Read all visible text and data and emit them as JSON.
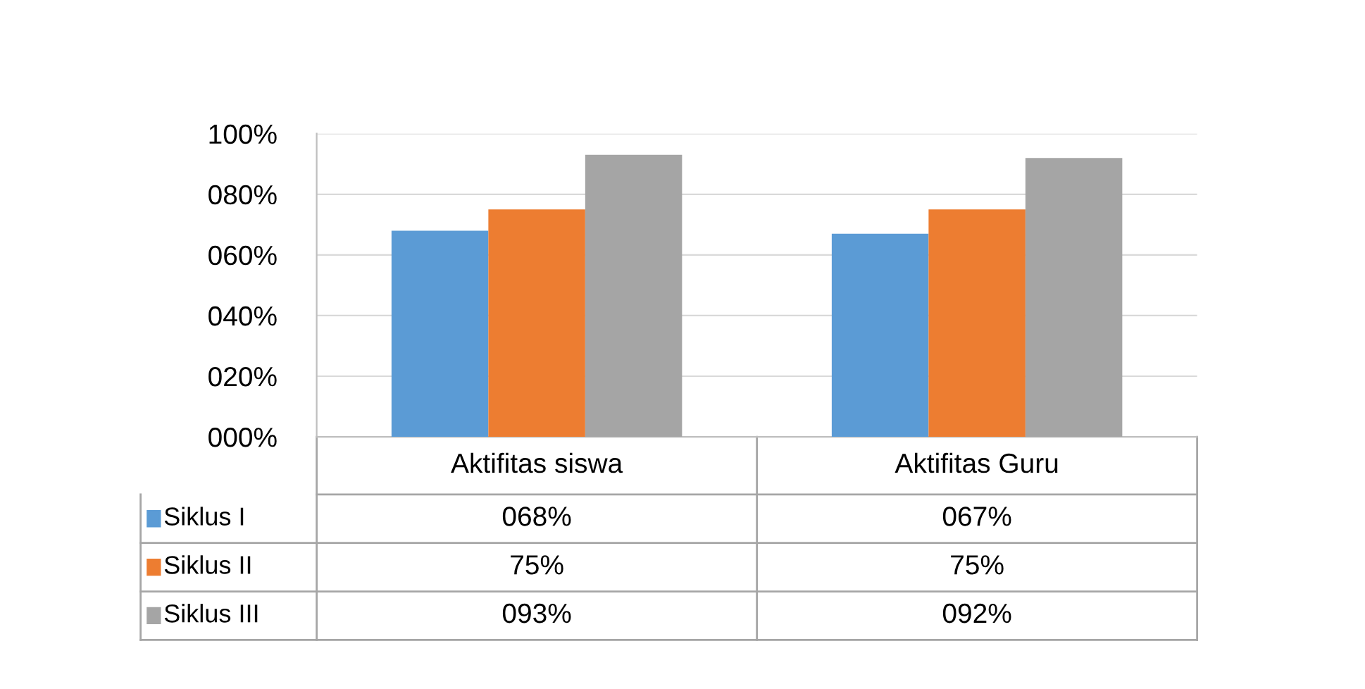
{
  "chart_data": {
    "type": "bar",
    "categories": [
      "Aktifitas siswa",
      "Aktifitas Guru"
    ],
    "series": [
      {
        "name": "Siklus I",
        "color": "#5b9bd5",
        "values": [
          68,
          67
        ],
        "value_labels": [
          "068%",
          "067%"
        ]
      },
      {
        "name": "Siklus II",
        "color": "#ed7d31",
        "values": [
          75,
          75
        ],
        "value_labels": [
          "75%",
          "75%"
        ]
      },
      {
        "name": "Siklus III",
        "color": "#a5a5a5",
        "values": [
          93,
          92
        ],
        "value_labels": [
          "093%",
          "092%"
        ]
      }
    ],
    "ylim": [
      0,
      100
    ],
    "yticks": [
      {
        "value": 0,
        "label": "000%"
      },
      {
        "value": 20,
        "label": "020%"
      },
      {
        "value": 40,
        "label": "040%"
      },
      {
        "value": 60,
        "label": "060%"
      },
      {
        "value": 80,
        "label": "080%"
      },
      {
        "value": 100,
        "label": "100%"
      }
    ],
    "grid": "y",
    "legend": "bottom left"
  }
}
